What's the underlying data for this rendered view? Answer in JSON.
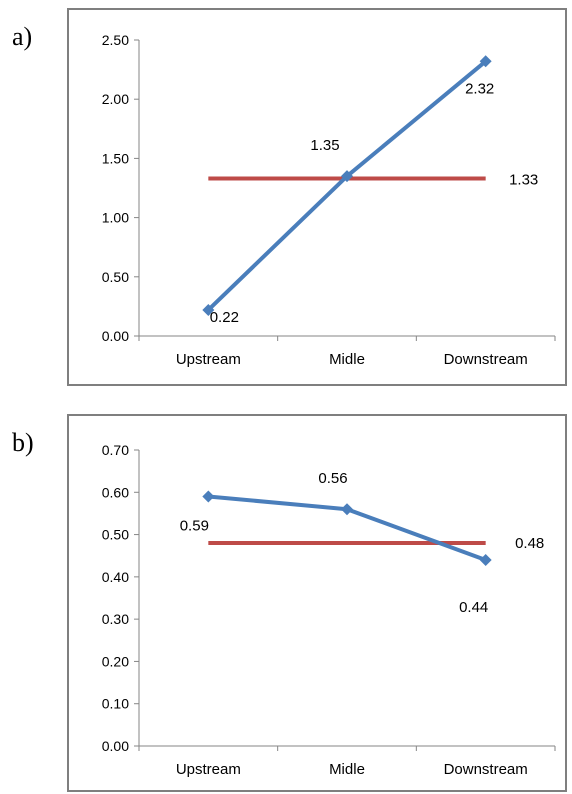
{
  "panels": [
    {
      "label": "a)"
    },
    {
      "label": "b)"
    }
  ],
  "chart_data": [
    {
      "type": "line",
      "categories": [
        "Upstream",
        "Midle",
        "Downstream"
      ],
      "ylim": [
        0,
        2.5
      ],
      "yticks": [
        "0.00",
        "0.50",
        "1.00",
        "1.50",
        "2.00",
        "2.50"
      ],
      "grid": false,
      "series": [
        {
          "values": [
            0.22,
            1.35,
            2.32
          ],
          "labels": [
            "0.22",
            "1.35",
            "2.32"
          ],
          "color": "#4a7ebb",
          "marker": "diamond"
        },
        {
          "values": [
            1.33,
            1.33,
            1.33
          ],
          "labels": [
            "",
            "",
            "1.33"
          ],
          "color": "#be4b48",
          "marker": "none"
        }
      ]
    },
    {
      "type": "line",
      "categories": [
        "Upstream",
        "Midle",
        "Downstream"
      ],
      "ylim": [
        0,
        0.7
      ],
      "yticks": [
        "0.00",
        "0.10",
        "0.20",
        "0.30",
        "0.40",
        "0.50",
        "0.60",
        "0.70"
      ],
      "grid": false,
      "series": [
        {
          "values": [
            0.59,
            0.56,
            0.44
          ],
          "labels": [
            "0.59",
            "0.56",
            "0.44"
          ],
          "color": "#4a7ebb",
          "marker": "diamond"
        },
        {
          "values": [
            0.48,
            0.48,
            0.48
          ],
          "labels": [
            "",
            "",
            "0.48"
          ],
          "color": "#be4b48",
          "marker": "none"
        }
      ]
    }
  ]
}
